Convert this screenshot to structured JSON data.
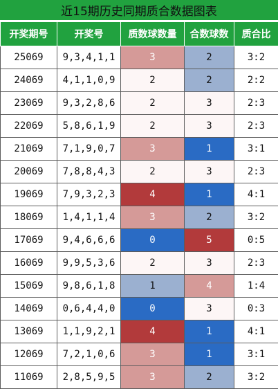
{
  "title": "近15期历史同期质合数据图表",
  "headers": [
    "开奖期号",
    "开奖号",
    "质数球数量",
    "合数球数",
    "质合比"
  ],
  "colors": {
    "header_bg": "#21a23f",
    "light_red": "#d59a98",
    "red": "#b23a3b",
    "light_blue": "#9bb0d0",
    "blue": "#2a6bc4"
  },
  "rows": [
    {
      "code": "25069",
      "nums": "9,3,4,1,1",
      "prime": "3",
      "prime_hl": "lightred",
      "comp": "2",
      "comp_hl": "lightblue",
      "ratio": "3:2"
    },
    {
      "code": "24069",
      "nums": "4,1,1,0,9",
      "prime": "2",
      "prime_hl": "plain",
      "comp": "2",
      "comp_hl": "lightblue",
      "ratio": "2:2"
    },
    {
      "code": "23069",
      "nums": "9,3,2,8,6",
      "prime": "2",
      "prime_hl": "plain",
      "comp": "3",
      "comp_hl": "plain",
      "ratio": "2:3"
    },
    {
      "code": "22069",
      "nums": "5,8,6,1,9",
      "prime": "2",
      "prime_hl": "plain",
      "comp": "3",
      "comp_hl": "plain",
      "ratio": "2:3"
    },
    {
      "code": "21069",
      "nums": "7,1,9,0,7",
      "prime": "3",
      "prime_hl": "lightred",
      "comp": "1",
      "comp_hl": "blue",
      "ratio": "3:1"
    },
    {
      "code": "20069",
      "nums": "7,8,8,4,3",
      "prime": "2",
      "prime_hl": "plain",
      "comp": "3",
      "comp_hl": "plain",
      "ratio": "2:3"
    },
    {
      "code": "19069",
      "nums": "7,9,3,2,3",
      "prime": "4",
      "prime_hl": "red",
      "comp": "1",
      "comp_hl": "blue",
      "ratio": "4:1"
    },
    {
      "code": "18069",
      "nums": "1,4,1,1,4",
      "prime": "3",
      "prime_hl": "lightred",
      "comp": "2",
      "comp_hl": "lightblue",
      "ratio": "3:2"
    },
    {
      "code": "17069",
      "nums": "9,4,6,6,6",
      "prime": "0",
      "prime_hl": "blue",
      "comp": "5",
      "comp_hl": "red",
      "ratio": "0:5"
    },
    {
      "code": "16069",
      "nums": "9,9,5,3,6",
      "prime": "2",
      "prime_hl": "plain",
      "comp": "3",
      "comp_hl": "plain",
      "ratio": "2:3"
    },
    {
      "code": "15069",
      "nums": "9,8,6,1,8",
      "prime": "1",
      "prime_hl": "lightblue",
      "comp": "4",
      "comp_hl": "lightred",
      "ratio": "1:4"
    },
    {
      "code": "14069",
      "nums": "0,6,4,4,0",
      "prime": "0",
      "prime_hl": "blue",
      "comp": "3",
      "comp_hl": "plain",
      "ratio": "0:3"
    },
    {
      "code": "13069",
      "nums": "1,1,9,2,1",
      "prime": "4",
      "prime_hl": "red",
      "comp": "1",
      "comp_hl": "blue",
      "ratio": "4:1"
    },
    {
      "code": "12069",
      "nums": "7,2,1,0,6",
      "prime": "3",
      "prime_hl": "lightred",
      "comp": "1",
      "comp_hl": "blue",
      "ratio": "3:1"
    },
    {
      "code": "11069",
      "nums": "2,8,5,9,5",
      "prime": "3",
      "prime_hl": "lightred",
      "comp": "2",
      "comp_hl": "lightblue",
      "ratio": "3:2"
    }
  ]
}
